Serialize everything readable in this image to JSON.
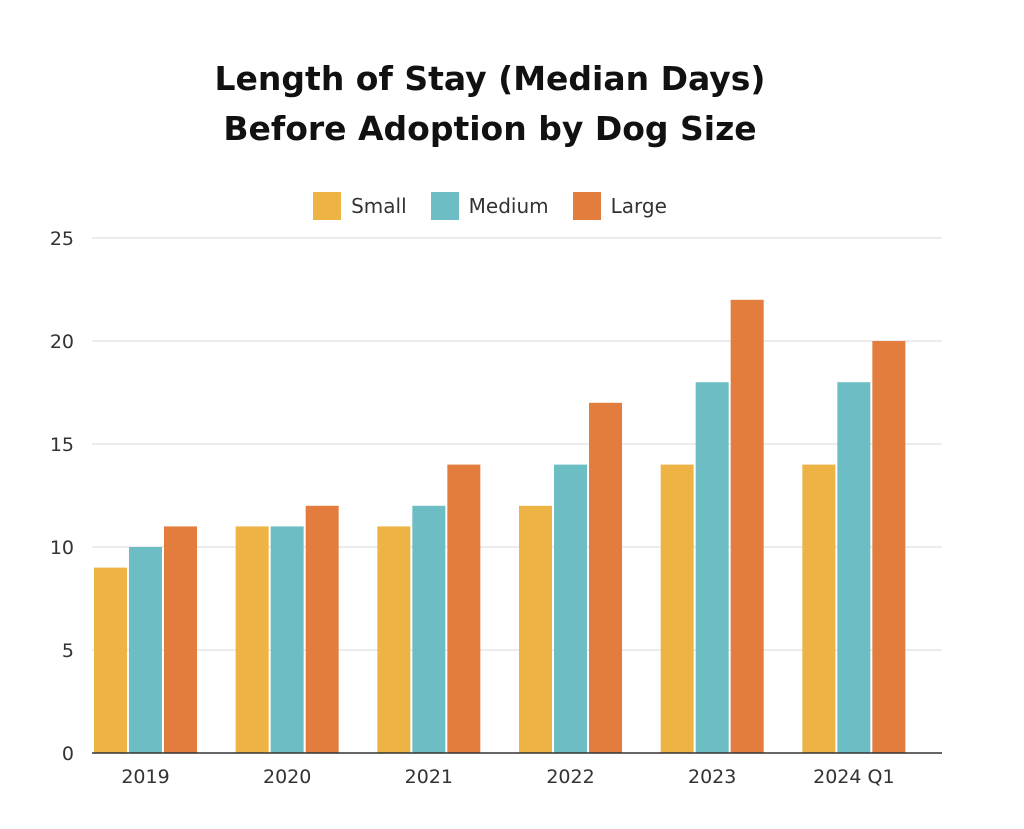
{
  "chart_data": {
    "type": "bar",
    "title_lines": [
      "Length of Stay (Median Days)",
      "Before Adoption by Dog Size"
    ],
    "categories": [
      "2019",
      "2020",
      "2021",
      "2022",
      "2023",
      "2024 Q1"
    ],
    "series": [
      {
        "name": "Small",
        "color": "#EDB445",
        "values": [
          9,
          11,
          11,
          12,
          14,
          14
        ]
      },
      {
        "name": "Medium",
        "color": "#6DBEC4",
        "values": [
          10,
          11,
          12,
          14,
          18,
          18
        ]
      },
      {
        "name": "Large",
        "color": "#E27D3E",
        "values": [
          11,
          12,
          14,
          17,
          22,
          20
        ]
      }
    ],
    "ylim": [
      0,
      25
    ],
    "yticks": [
      0,
      5,
      10,
      15,
      20,
      25
    ],
    "grid": true,
    "legend_position": "top-center",
    "xlabel": "",
    "ylabel": ""
  }
}
